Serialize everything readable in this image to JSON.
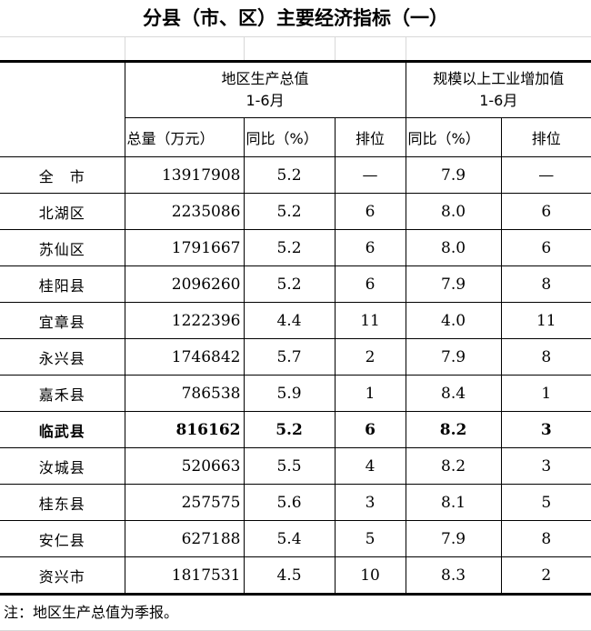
{
  "title": "分县（市、区）主要经济指标（一）",
  "headers": {
    "gdp": "地区生产总值",
    "gdp_period": "1-6月",
    "industry": "规模以上工业增加值",
    "industry_period": "1-6月",
    "total": "总量（万元）",
    "yoy": "同比（%）",
    "rank": "排位",
    "yoy2": "同比（%）",
    "rank2": "排位"
  },
  "rows": [
    {
      "name": "全　市",
      "total": "13917908",
      "gdp_yoy": "5.2",
      "gdp_rank": "—",
      "ind_yoy": "7.9",
      "ind_rank": "—",
      "bold": false
    },
    {
      "name": "北湖区",
      "total": "2235086",
      "gdp_yoy": "5.2",
      "gdp_rank": "6",
      "ind_yoy": "8.0",
      "ind_rank": "6",
      "bold": false
    },
    {
      "name": "苏仙区",
      "total": "1791667",
      "gdp_yoy": "5.2",
      "gdp_rank": "6",
      "ind_yoy": "8.0",
      "ind_rank": "6",
      "bold": false
    },
    {
      "name": "桂阳县",
      "total": "2096260",
      "gdp_yoy": "5.2",
      "gdp_rank": "6",
      "ind_yoy": "7.9",
      "ind_rank": "8",
      "bold": false
    },
    {
      "name": "宜章县",
      "total": "1222396",
      "gdp_yoy": "4.4",
      "gdp_rank": "11",
      "ind_yoy": "4.0",
      "ind_rank": "11",
      "bold": false
    },
    {
      "name": "永兴县",
      "total": "1746842",
      "gdp_yoy": "5.7",
      "gdp_rank": "2",
      "ind_yoy": "7.9",
      "ind_rank": "8",
      "bold": false
    },
    {
      "name": "嘉禾县",
      "total": "786538",
      "gdp_yoy": "5.9",
      "gdp_rank": "1",
      "ind_yoy": "8.4",
      "ind_rank": "1",
      "bold": false
    },
    {
      "name": "临武县",
      "total": "816162",
      "gdp_yoy": "5.2",
      "gdp_rank": "6",
      "ind_yoy": "8.2",
      "ind_rank": "3",
      "bold": true
    },
    {
      "name": "汝城县",
      "total": "520663",
      "gdp_yoy": "5.5",
      "gdp_rank": "4",
      "ind_yoy": "8.2",
      "ind_rank": "3",
      "bold": false
    },
    {
      "name": "桂东县",
      "total": "257575",
      "gdp_yoy": "5.6",
      "gdp_rank": "3",
      "ind_yoy": "8.1",
      "ind_rank": "5",
      "bold": false
    },
    {
      "name": "安仁县",
      "total": "627188",
      "gdp_yoy": "5.4",
      "gdp_rank": "5",
      "ind_yoy": "7.9",
      "ind_rank": "8",
      "bold": false
    },
    {
      "name": "资兴市",
      "total": "1817531",
      "gdp_yoy": "4.5",
      "gdp_rank": "10",
      "ind_yoy": "8.3",
      "ind_rank": "2",
      "bold": false
    }
  ],
  "note": "注：地区生产总值为季报。"
}
